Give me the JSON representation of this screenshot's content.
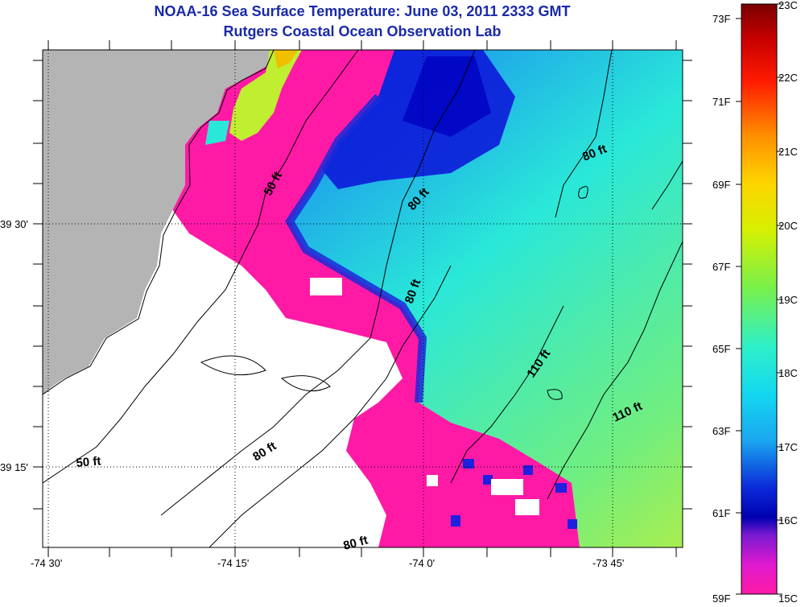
{
  "header": {
    "title": "NOAA-16 Sea Surface Temperature:  June 03, 2011 2333 GMT",
    "subtitle": "Rutgers Coastal Ocean Observation Lab"
  },
  "axes": {
    "x_ticks": [
      "-74 30'",
      "-74 15'",
      "-74 0'",
      "-73 45'"
    ],
    "y_ticks": [
      "39 30'",
      "39 15'"
    ]
  },
  "contour_labels": [
    "50 ft",
    "80 ft",
    "80 ft",
    "80 ft",
    "80 ft",
    "110 ft",
    "110 ft",
    "50 ft",
    "80 ft"
  ],
  "colorbar": {
    "fahrenheit": [
      "73F",
      "71F",
      "69F",
      "67F",
      "65F",
      "63F",
      "61F",
      "59F"
    ],
    "celsius": [
      "23C",
      "22C",
      "21C",
      "20C",
      "19C",
      "18C",
      "17C",
      "16C",
      "15C"
    ]
  },
  "colors": {
    "land": "#b4b4b4",
    "cloud_mask": "#ffffff",
    "cold": "#ff1aa6",
    "warm": "#8c0000",
    "title": "#1a2aa8"
  }
}
